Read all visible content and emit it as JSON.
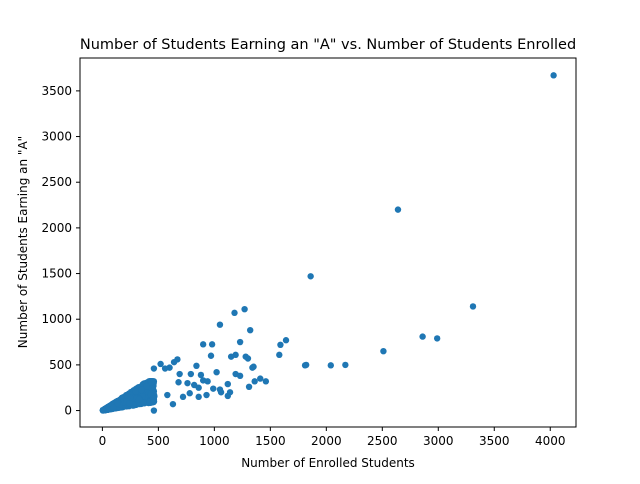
{
  "chart_data": {
    "type": "scatter",
    "title": "Number of Students Earning an \"A\" vs. Number of Students Enrolled",
    "xlabel": "Number of Enrolled Students",
    "ylabel": "Number of Students Earning an \"A\"",
    "xlim": [
      -200,
      4230
    ],
    "ylim": [
      -180,
      3860
    ],
    "xticks": [
      0,
      500,
      1000,
      1500,
      2000,
      2500,
      3000,
      3500,
      4000
    ],
    "yticks": [
      0,
      500,
      1000,
      1500,
      2000,
      2500,
      3000,
      3500
    ],
    "grid": false,
    "legend": "none",
    "marker_color": "#1f77b4",
    "series": [
      {
        "points": [
          [
            4030,
            3670
          ],
          [
            2640,
            2200
          ],
          [
            1860,
            1470
          ],
          [
            3310,
            1140
          ],
          [
            1270,
            1110
          ],
          [
            1180,
            1070
          ],
          [
            1050,
            940
          ],
          [
            1320,
            880
          ],
          [
            2860,
            810
          ],
          [
            2990,
            790
          ],
          [
            1640,
            770
          ],
          [
            1230,
            750
          ],
          [
            980,
            725
          ],
          [
            900,
            725
          ],
          [
            1590,
            720
          ],
          [
            2510,
            650
          ],
          [
            1580,
            610
          ],
          [
            1190,
            610
          ],
          [
            970,
            600
          ],
          [
            1150,
            590
          ],
          [
            1280,
            590
          ],
          [
            1300,
            570
          ],
          [
            670,
            560
          ],
          [
            640,
            530
          ],
          [
            520,
            510
          ],
          [
            1820,
            500
          ],
          [
            2170,
            500
          ],
          [
            2040,
            495
          ],
          [
            1810,
            495
          ],
          [
            840,
            490
          ],
          [
            1350,
            480
          ],
          [
            1340,
            470
          ],
          [
            600,
            470
          ],
          [
            560,
            460
          ],
          [
            460,
            460
          ],
          [
            690,
            400
          ],
          [
            790,
            400
          ],
          [
            880,
            390
          ],
          [
            1190,
            400
          ],
          [
            1230,
            380
          ],
          [
            1020,
            420
          ],
          [
            1410,
            350
          ],
          [
            1460,
            320
          ],
          [
            1360,
            320
          ],
          [
            1120,
            290
          ],
          [
            1310,
            260
          ],
          [
            1050,
            230
          ],
          [
            990,
            240
          ],
          [
            900,
            330
          ],
          [
            940,
            320
          ],
          [
            680,
            310
          ],
          [
            760,
            300
          ],
          [
            820,
            280
          ],
          [
            860,
            250
          ],
          [
            1060,
            200
          ],
          [
            1140,
            200
          ],
          [
            1120,
            160
          ],
          [
            930,
            170
          ],
          [
            860,
            150
          ],
          [
            630,
            70
          ],
          [
            460,
            0
          ],
          [
            780,
            190
          ],
          [
            720,
            150
          ],
          [
            580,
            170
          ]
        ]
      }
    ]
  }
}
